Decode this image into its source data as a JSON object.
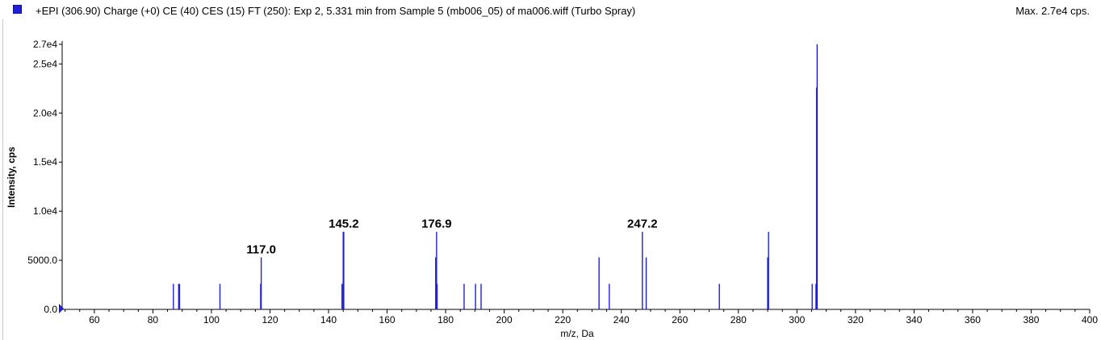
{
  "header": {
    "title": "+EPI (306.90) Charge (+0) CE (40) CES (15) FT (250): Exp 2, 5.331 min from Sample 5 (mb006_05) of ma006.wiff (Turbo Spray)",
    "max_label": "Max. 2.7e4 cps.",
    "legend_color": "#1f1fd6"
  },
  "chart_data": {
    "type": "bar",
    "title": "+EPI (306.90) Charge (+0) CE (40) CES (15) FT (250): Exp 2, 5.331 min from Sample 5 (mb006_05) of ma006.wiff (Turbo Spray)",
    "xlabel": "m/z, Da",
    "ylabel": "Intensity, cps",
    "xlim": [
      49,
      400
    ],
    "ylim": [
      0,
      27000
    ],
    "series_color": "#1f1fd6",
    "x_ticks": [
      60,
      80,
      100,
      120,
      140,
      160,
      180,
      200,
      220,
      240,
      260,
      280,
      300,
      320,
      340,
      360,
      380,
      400
    ],
    "y_ticks": [
      {
        "value": 0,
        "label": "0.0"
      },
      {
        "value": 5000,
        "label": "5000.0"
      },
      {
        "value": 10000,
        "label": "1.0e4"
      },
      {
        "value": 15000,
        "label": "1.5e4"
      },
      {
        "value": 20000,
        "label": "2.0e4"
      },
      {
        "value": 25000,
        "label": "2.5e4"
      },
      {
        "value": 27000,
        "label": "2.7e4"
      }
    ],
    "peaks": [
      {
        "mz": 87.0,
        "intensity": 2600
      },
      {
        "mz": 88.8,
        "intensity": 2600
      },
      {
        "mz": 89.1,
        "intensity": 2600
      },
      {
        "mz": 102.9,
        "intensity": 2600
      },
      {
        "mz": 116.8,
        "intensity": 2600
      },
      {
        "mz": 117.0,
        "intensity": 5300
      },
      {
        "mz": 144.6,
        "intensity": 2600
      },
      {
        "mz": 145.0,
        "intensity": 7900
      },
      {
        "mz": 145.2,
        "intensity": 7900
      },
      {
        "mz": 176.6,
        "intensity": 5300
      },
      {
        "mz": 176.9,
        "intensity": 7900
      },
      {
        "mz": 177.1,
        "intensity": 2600
      },
      {
        "mz": 186.3,
        "intensity": 2600
      },
      {
        "mz": 190.2,
        "intensity": 2600
      },
      {
        "mz": 192.1,
        "intensity": 2600
      },
      {
        "mz": 232.4,
        "intensity": 5300
      },
      {
        "mz": 235.9,
        "intensity": 2600
      },
      {
        "mz": 247.2,
        "intensity": 7900
      },
      {
        "mz": 248.5,
        "intensity": 5300
      },
      {
        "mz": 273.5,
        "intensity": 2600
      },
      {
        "mz": 290.0,
        "intensity": 5300
      },
      {
        "mz": 290.3,
        "intensity": 7900
      },
      {
        "mz": 305.2,
        "intensity": 2600
      },
      {
        "mz": 306.5,
        "intensity": 2600
      },
      {
        "mz": 306.7,
        "intensity": 22600
      },
      {
        "mz": 306.9,
        "intensity": 27000
      }
    ],
    "annotations": [
      {
        "label": "117.0",
        "mz": 117.0,
        "intensity": 5300
      },
      {
        "label": "145.2",
        "mz": 145.2,
        "intensity": 7900
      },
      {
        "label": "176.9",
        "mz": 176.9,
        "intensity": 7900
      },
      {
        "label": "247.2",
        "mz": 247.2,
        "intensity": 7900
      }
    ],
    "grid": false,
    "legend": "top-left"
  }
}
